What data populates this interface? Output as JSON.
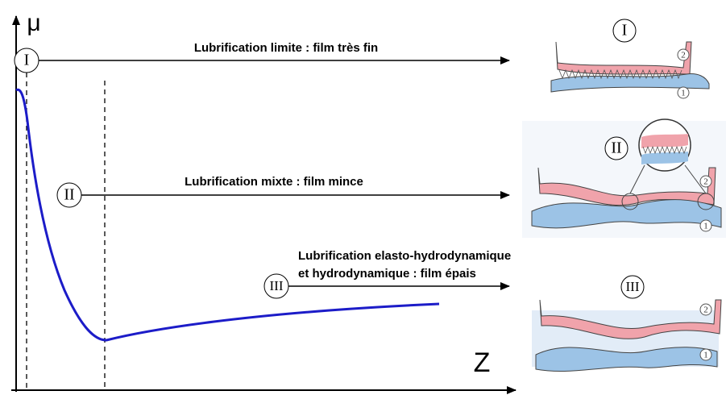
{
  "axes": {
    "y_label": "μ",
    "x_label": "Z"
  },
  "regimes": [
    {
      "numeral": "I",
      "label_lines": [
        "Lubrification limite : film très fin"
      ],
      "markers": [
        "2",
        "1"
      ]
    },
    {
      "numeral": "II",
      "label_lines": [
        "Lubrification mixte : film mince"
      ],
      "markers": [
        "2",
        "1"
      ]
    },
    {
      "numeral": "III",
      "label_lines": [
        "Lubrification elasto-hydrodynamique",
        "et hydrodynamique : film épais"
      ],
      "markers": [
        "2",
        "1"
      ]
    }
  ]
}
